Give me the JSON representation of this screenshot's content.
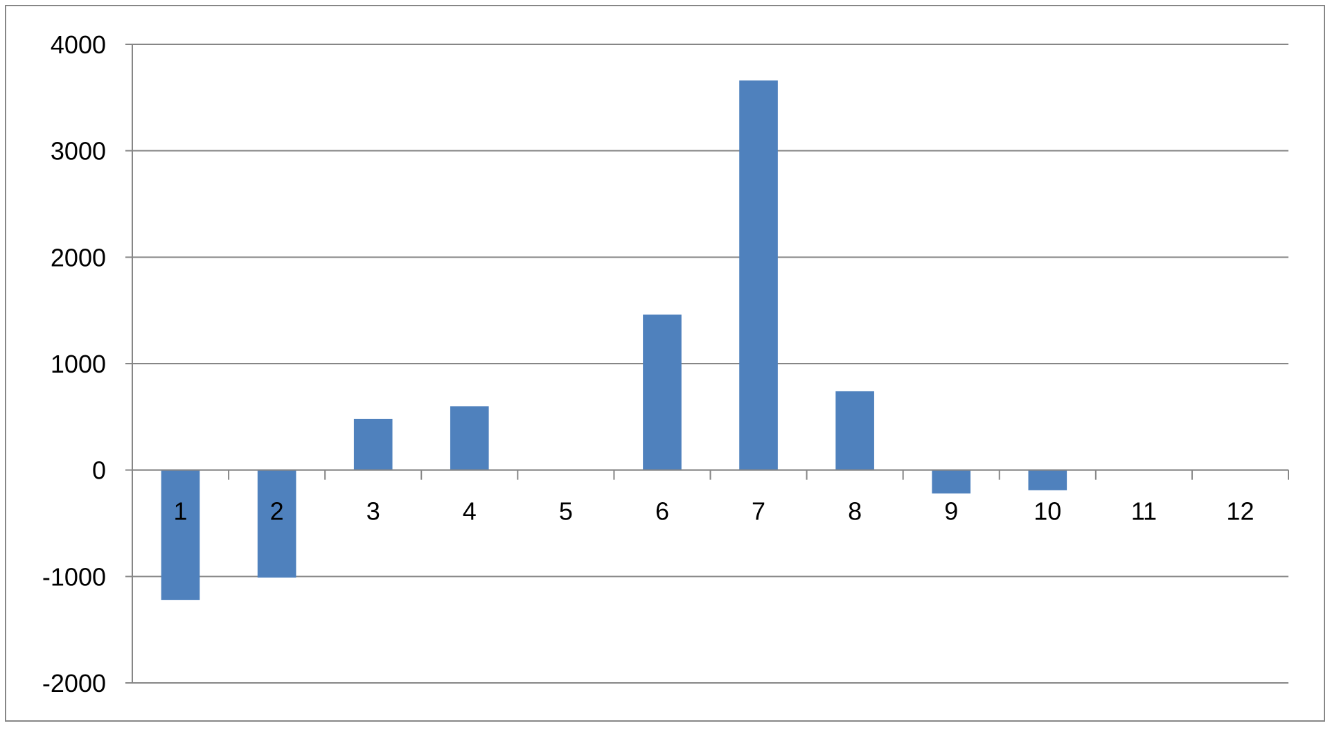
{
  "chart_data": {
    "type": "bar",
    "title": "",
    "xlabel": "",
    "ylabel": "",
    "categories": [
      "1",
      "2",
      "3",
      "4",
      "5",
      "6",
      "7",
      "8",
      "9",
      "10",
      "11",
      "12"
    ],
    "values": [
      -1220,
      -1010,
      480,
      600,
      0,
      1460,
      3660,
      740,
      -220,
      -190,
      0,
      0
    ],
    "ylim": [
      -2000,
      4000
    ],
    "yticks": [
      "-2000",
      "-1000",
      "0",
      "1000",
      "2000",
      "3000",
      "4000"
    ],
    "grid": true,
    "legend": "none",
    "colors": {
      "bar": "#4F81BD",
      "grid": "#868686",
      "border": "#868686",
      "background": "#ffffff"
    }
  }
}
